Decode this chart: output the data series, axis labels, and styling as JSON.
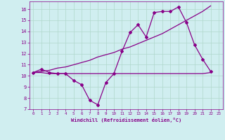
{
  "xlabel": "Windchill (Refroidissement éolien,°C)",
  "background_color": "#d0eef0",
  "grid_color": "#b0d8cc",
  "line_color": "#880088",
  "xlim": [
    -0.5,
    23.5
  ],
  "ylim": [
    7,
    16.7
  ],
  "xticks": [
    0,
    1,
    2,
    3,
    4,
    5,
    6,
    7,
    8,
    9,
    10,
    11,
    12,
    13,
    14,
    15,
    16,
    17,
    18,
    19,
    20,
    21,
    22,
    23
  ],
  "yticks": [
    7,
    8,
    9,
    10,
    11,
    12,
    13,
    14,
    15,
    16
  ],
  "line1_x": [
    0,
    1,
    2,
    3,
    4,
    5,
    6,
    7,
    8,
    9,
    10,
    11,
    12,
    13,
    14,
    15,
    16,
    17,
    18,
    19,
    20,
    21,
    22
  ],
  "line1_y": [
    10.3,
    10.6,
    10.3,
    10.2,
    10.2,
    9.6,
    9.2,
    7.8,
    7.4,
    9.4,
    10.2,
    12.2,
    13.9,
    14.6,
    13.5,
    15.7,
    15.8,
    15.8,
    16.2,
    14.8,
    12.8,
    11.5,
    10.4
  ],
  "line2_x": [
    0,
    1,
    2,
    3,
    4,
    5,
    6,
    7,
    8,
    9,
    10,
    11,
    12,
    13,
    14,
    15,
    16,
    17,
    18,
    19,
    20,
    21,
    22
  ],
  "line2_y": [
    10.3,
    10.3,
    10.2,
    10.2,
    10.2,
    10.2,
    10.2,
    10.2,
    10.2,
    10.2,
    10.2,
    10.2,
    10.2,
    10.2,
    10.2,
    10.2,
    10.2,
    10.2,
    10.2,
    10.2,
    10.2,
    10.2,
    10.3
  ],
  "line3_x": [
    0,
    1,
    2,
    3,
    4,
    5,
    6,
    7,
    8,
    9,
    10,
    11,
    12,
    13,
    14,
    15,
    16,
    17,
    18,
    19,
    20,
    21,
    22
  ],
  "line3_y": [
    10.3,
    10.4,
    10.5,
    10.7,
    10.8,
    11.0,
    11.2,
    11.4,
    11.7,
    11.9,
    12.1,
    12.4,
    12.6,
    12.9,
    13.2,
    13.5,
    13.8,
    14.2,
    14.6,
    15.0,
    15.4,
    15.8,
    16.3
  ]
}
